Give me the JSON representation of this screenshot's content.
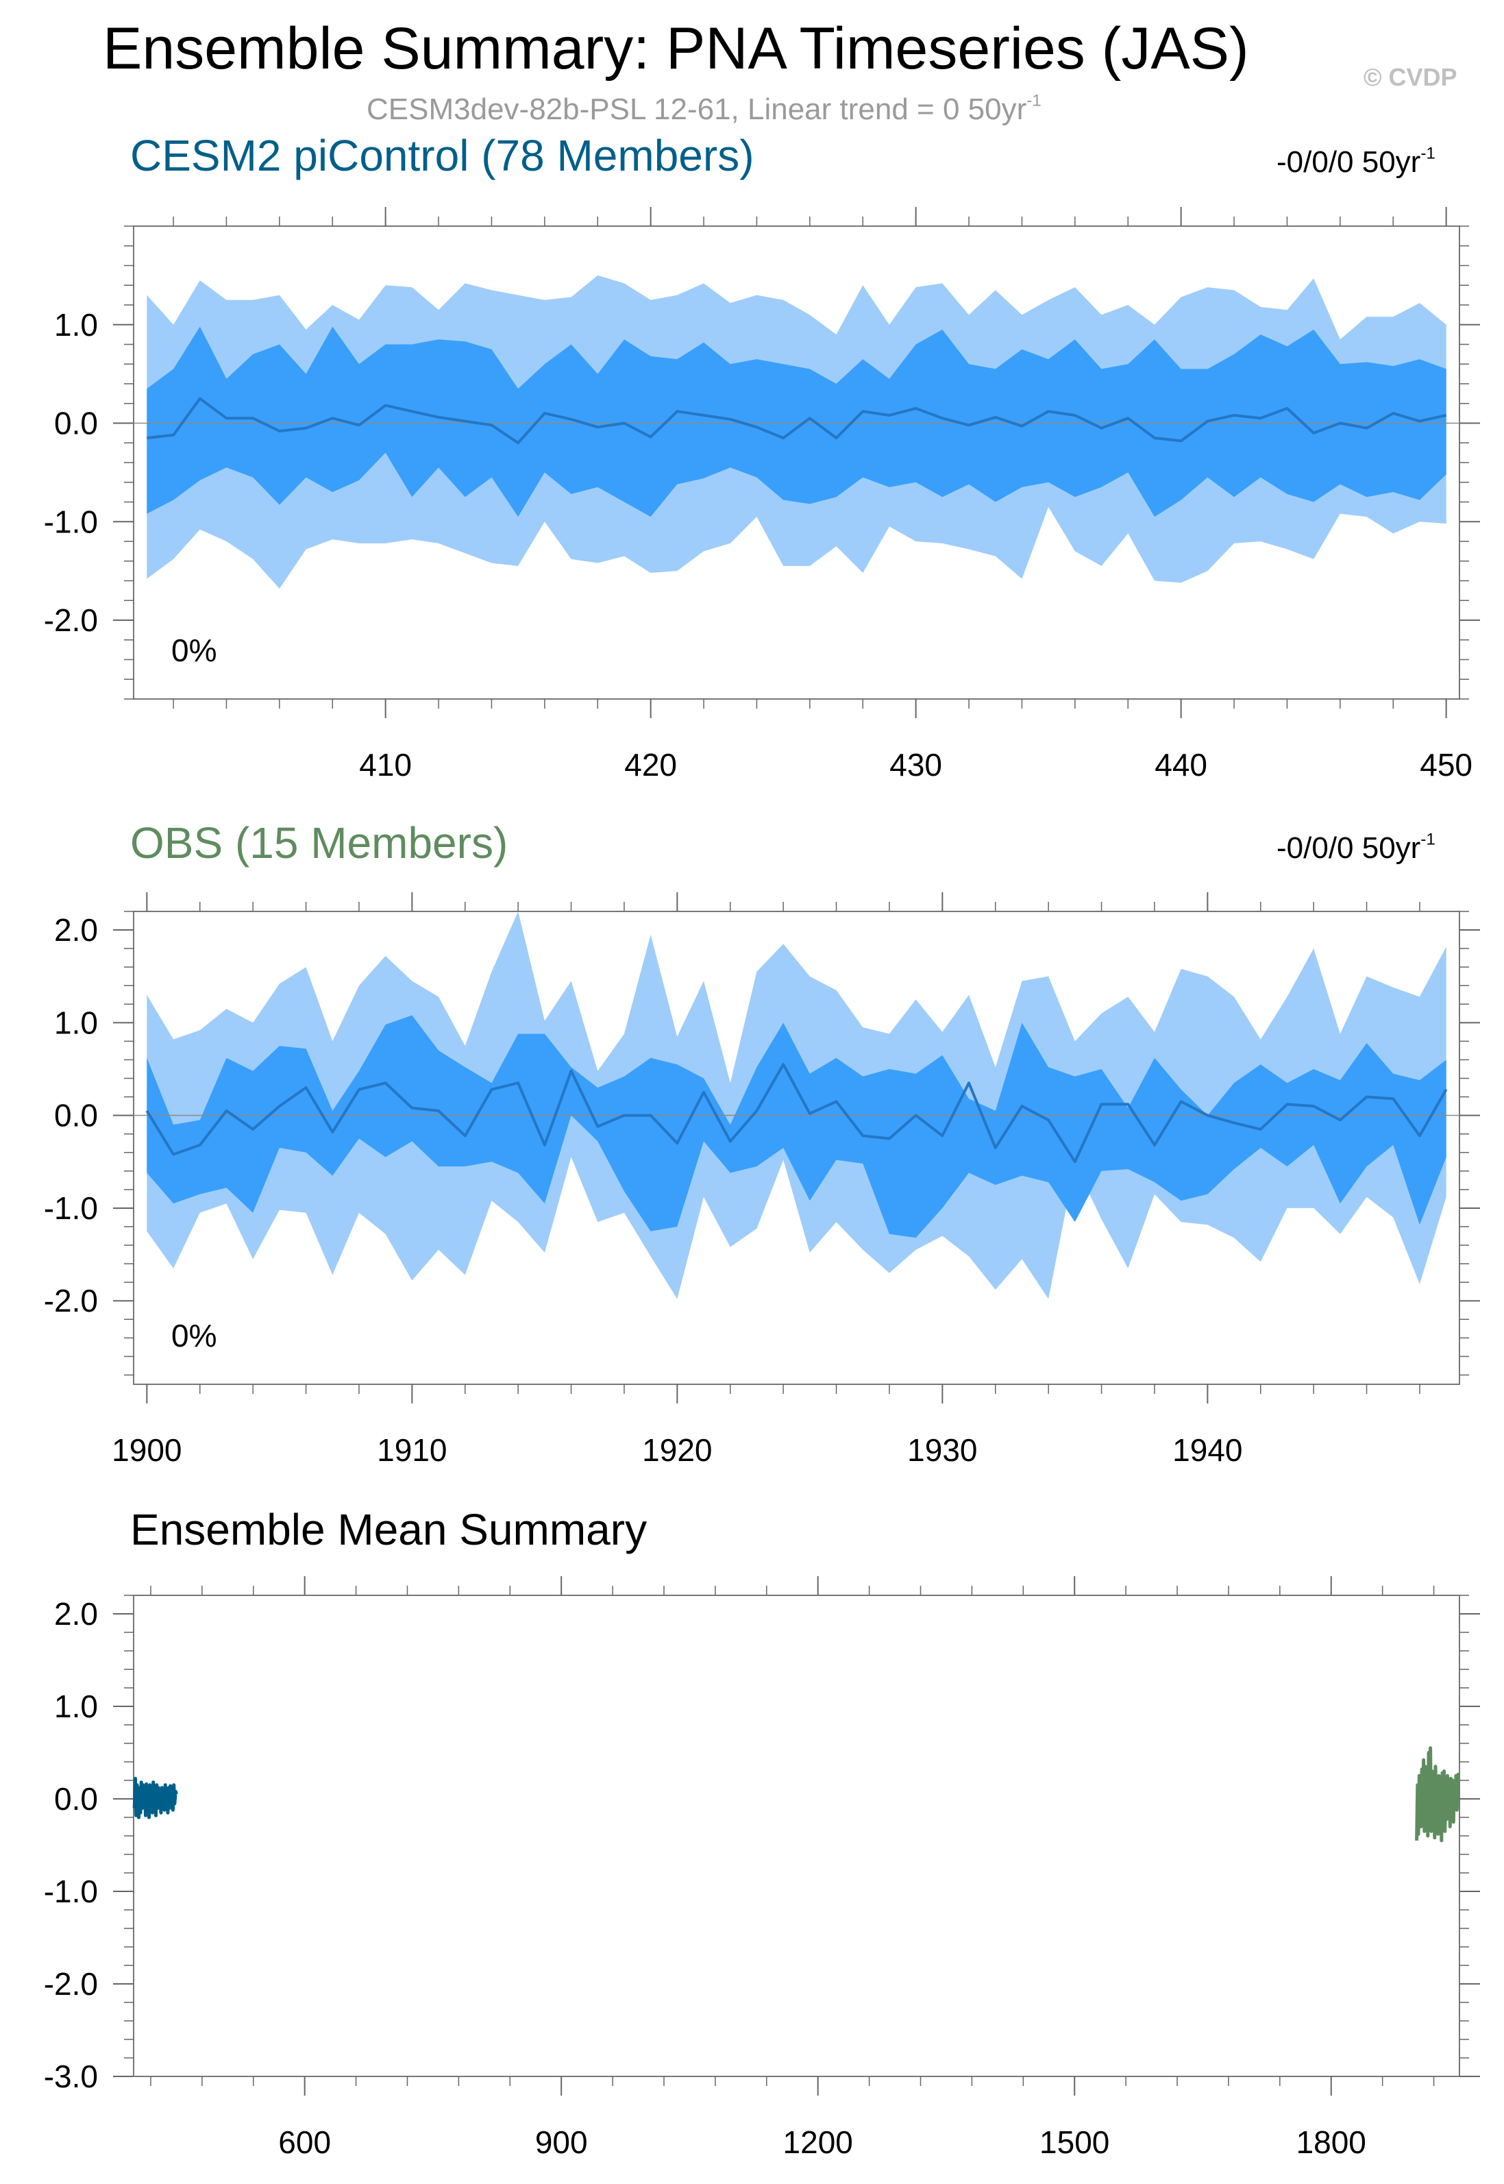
{
  "title": "Ensemble Summary: PNA Timeseries (JAS)",
  "copyright": "© CVDP",
  "subtitle": {
    "text": "CESM3dev-82b-PSL 12-61, Linear trend = 0 50yr",
    "sup": "-1"
  },
  "colors": {
    "outer_band": "#9fcdfb",
    "inner_band": "#3a9ffb",
    "mean_line": "#2477c6",
    "zero_line": "#8a8a8a",
    "model_title": "#005f8a",
    "obs_title": "#5f8c5f",
    "model_mean": "#005f8a",
    "obs_mean": "#5f8c5f"
  },
  "panel1": {
    "title": "CESM2 piControl (78 Members)",
    "trend": "-0/0/0 50yr",
    "trend_sup": "-1",
    "percent_label": "0%"
  },
  "panel2": {
    "title": "OBS (15 Members)",
    "trend": "-0/0/0 50yr",
    "trend_sup": "-1",
    "percent_label": "0%"
  },
  "panel3": {
    "title": "Ensemble Mean Summary"
  },
  "chart_data": [
    {
      "type": "area",
      "name": "CESM2 piControl (78 Members)",
      "x_start": 401,
      "xlim": [
        400.5,
        450.5
      ],
      "ylim": [
        -2.8,
        2.0
      ],
      "xticks": [
        410,
        420,
        430,
        440,
        450
      ],
      "yticks": [
        1.0,
        0.0,
        -1.0,
        -2.0
      ],
      "ytick_labels": [
        "1.0",
        "0.0",
        "-1.0",
        "-2.0"
      ],
      "series": [
        {
          "name": "max",
          "values": [
            1.3,
            1.0,
            1.45,
            1.25,
            1.25,
            1.3,
            0.95,
            1.2,
            1.05,
            1.4,
            1.38,
            1.15,
            1.42,
            1.35,
            1.3,
            1.25,
            1.28,
            1.5,
            1.42,
            1.25,
            1.3,
            1.42,
            1.22,
            1.3,
            1.25,
            1.1,
            0.9,
            1.4,
            1.0,
            1.38,
            1.42,
            1.1,
            1.35,
            1.1,
            1.25,
            1.38,
            1.1,
            1.2,
            1.0,
            1.28,
            1.38,
            1.35,
            1.18,
            1.15,
            1.47,
            0.85,
            1.08,
            1.08,
            1.22,
            1.0
          ]
        },
        {
          "name": "p84",
          "values": [
            0.35,
            0.55,
            0.98,
            0.45,
            0.7,
            0.8,
            0.5,
            0.98,
            0.6,
            0.8,
            0.8,
            0.85,
            0.83,
            0.75,
            0.35,
            0.6,
            0.8,
            0.5,
            0.85,
            0.68,
            0.65,
            0.82,
            0.6,
            0.65,
            0.6,
            0.55,
            0.4,
            0.65,
            0.45,
            0.8,
            0.95,
            0.6,
            0.55,
            0.75,
            0.65,
            0.85,
            0.55,
            0.6,
            0.85,
            0.55,
            0.55,
            0.7,
            0.9,
            0.78,
            0.95,
            0.6,
            0.62,
            0.58,
            0.65,
            0.55
          ]
        },
        {
          "name": "mean",
          "values": [
            -0.15,
            -0.12,
            0.25,
            0.05,
            0.05,
            -0.08,
            -0.05,
            0.05,
            -0.02,
            0.18,
            0.12,
            0.06,
            0.02,
            -0.02,
            -0.2,
            0.1,
            0.04,
            -0.04,
            0.0,
            -0.14,
            0.12,
            0.08,
            0.04,
            -0.04,
            -0.15,
            0.05,
            -0.15,
            0.12,
            0.08,
            0.15,
            0.05,
            -0.02,
            0.06,
            -0.03,
            0.12,
            0.08,
            -0.05,
            0.05,
            -0.15,
            -0.18,
            0.02,
            0.08,
            0.05,
            0.15,
            -0.1,
            0.0,
            -0.05,
            0.1,
            0.02,
            0.08
          ]
        },
        {
          "name": "p16",
          "values": [
            -0.92,
            -0.78,
            -0.58,
            -0.45,
            -0.55,
            -0.83,
            -0.55,
            -0.7,
            -0.58,
            -0.3,
            -0.75,
            -0.45,
            -0.75,
            -0.55,
            -0.95,
            -0.5,
            -0.72,
            -0.65,
            -0.8,
            -0.95,
            -0.62,
            -0.56,
            -0.45,
            -0.55,
            -0.78,
            -0.82,
            -0.75,
            -0.55,
            -0.65,
            -0.6,
            -0.75,
            -0.62,
            -0.8,
            -0.65,
            -0.6,
            -0.75,
            -0.65,
            -0.5,
            -0.95,
            -0.78,
            -0.55,
            -0.75,
            -0.55,
            -0.72,
            -0.8,
            -0.62,
            -0.75,
            -0.7,
            -0.78,
            -0.52
          ]
        },
        {
          "name": "min",
          "values": [
            -1.58,
            -1.38,
            -1.08,
            -1.2,
            -1.38,
            -1.68,
            -1.28,
            -1.18,
            -1.22,
            -1.22,
            -1.18,
            -1.22,
            -1.32,
            -1.42,
            -1.45,
            -1.0,
            -1.38,
            -1.42,
            -1.35,
            -1.52,
            -1.5,
            -1.3,
            -1.22,
            -0.95,
            -1.45,
            -1.45,
            -1.25,
            -1.52,
            -1.05,
            -1.2,
            -1.22,
            -1.28,
            -1.35,
            -1.58,
            -0.85,
            -1.3,
            -1.45,
            -1.12,
            -1.6,
            -1.62,
            -1.5,
            -1.22,
            -1.2,
            -1.28,
            -1.38,
            -0.92,
            -0.95,
            -1.12,
            -1.0,
            -1.02
          ]
        }
      ]
    },
    {
      "type": "area",
      "name": "OBS (15 Members)",
      "x_start": 1900,
      "xlim": [
        1899.5,
        1949.5
      ],
      "ylim": [
        -2.9,
        2.2
      ],
      "xticks": [
        1900,
        1910,
        1920,
        1930,
        1940
      ],
      "yticks": [
        2.0,
        1.0,
        0.0,
        -1.0,
        -2.0
      ],
      "ytick_labels": [
        "2.0",
        "1.0",
        "0.0",
        "-1.0",
        "-2.0"
      ],
      "series": [
        {
          "name": "max",
          "values": [
            1.3,
            0.82,
            0.92,
            1.15,
            1.0,
            1.42,
            1.6,
            0.8,
            1.4,
            1.72,
            1.45,
            1.28,
            0.75,
            1.55,
            2.2,
            1.02,
            1.45,
            0.48,
            0.88,
            1.95,
            0.85,
            1.45,
            0.35,
            1.55,
            1.85,
            1.5,
            1.35,
            0.95,
            0.88,
            1.25,
            0.9,
            1.3,
            0.52,
            1.45,
            1.5,
            0.8,
            1.1,
            1.28,
            0.9,
            1.58,
            1.5,
            1.28,
            0.82,
            1.28,
            1.8,
            0.88,
            1.5,
            1.38,
            1.28,
            1.82
          ]
        },
        {
          "name": "p84",
          "values": [
            0.62,
            -0.1,
            -0.05,
            0.62,
            0.48,
            0.75,
            0.72,
            0.05,
            0.48,
            0.98,
            1.08,
            0.7,
            0.52,
            0.35,
            0.88,
            0.88,
            0.52,
            0.3,
            0.42,
            0.62,
            0.55,
            0.4,
            -0.1,
            0.52,
            1.0,
            0.45,
            0.62,
            0.42,
            0.5,
            0.45,
            0.65,
            0.18,
            0.05,
            1.0,
            0.52,
            0.42,
            0.5,
            0.08,
            0.62,
            0.28,
            0.0,
            0.35,
            0.55,
            0.35,
            0.5,
            0.38,
            0.78,
            0.45,
            0.38,
            0.6
          ]
        },
        {
          "name": "mean",
          "values": [
            0.05,
            -0.42,
            -0.32,
            0.05,
            -0.15,
            0.1,
            0.3,
            -0.18,
            0.28,
            0.35,
            0.08,
            0.05,
            -0.22,
            0.28,
            0.35,
            -0.32,
            0.48,
            -0.12,
            0.0,
            0.0,
            -0.3,
            0.25,
            -0.28,
            0.05,
            0.55,
            0.02,
            0.15,
            -0.22,
            -0.25,
            0.0,
            -0.22,
            0.35,
            -0.35,
            0.1,
            -0.05,
            -0.5,
            0.12,
            0.12,
            -0.32,
            0.15,
            0.0,
            -0.08,
            -0.15,
            0.12,
            0.1,
            -0.05,
            0.2,
            0.18,
            -0.22,
            0.28
          ]
        },
        {
          "name": "p16",
          "values": [
            -0.62,
            -0.95,
            -0.85,
            -0.78,
            -1.05,
            -0.35,
            -0.4,
            -0.65,
            -0.25,
            -0.45,
            -0.28,
            -0.55,
            -0.55,
            -0.5,
            -0.62,
            -0.95,
            0.0,
            -0.28,
            -0.82,
            -1.25,
            -1.2,
            -0.28,
            -0.62,
            -0.55,
            -0.35,
            -0.92,
            -0.48,
            -0.52,
            -1.28,
            -1.32,
            -1.0,
            -0.62,
            -0.75,
            -0.65,
            -0.72,
            -1.15,
            -0.6,
            -0.58,
            -0.72,
            -0.92,
            -0.85,
            -0.58,
            -0.35,
            -0.55,
            -0.32,
            -0.95,
            -0.55,
            -0.32,
            -1.18,
            -0.45
          ]
        },
        {
          "name": "min",
          "values": [
            -1.25,
            -1.65,
            -1.05,
            -0.95,
            -1.55,
            -1.02,
            -1.05,
            -1.72,
            -1.05,
            -1.28,
            -1.78,
            -1.45,
            -1.72,
            -0.92,
            -1.15,
            -1.48,
            -0.45,
            -1.15,
            -1.05,
            -1.52,
            -1.98,
            -0.88,
            -1.42,
            -1.22,
            -0.48,
            -1.48,
            -1.15,
            -1.45,
            -1.7,
            -1.45,
            -1.3,
            -1.52,
            -1.88,
            -1.55,
            -1.98,
            -0.52,
            -1.12,
            -1.65,
            -0.85,
            -1.15,
            -1.18,
            -1.32,
            -1.58,
            -1.0,
            -1.0,
            -1.28,
            -0.88,
            -1.1,
            -1.82,
            -0.88
          ]
        }
      ]
    },
    {
      "type": "line",
      "name": "Ensemble Mean Summary",
      "xlim": [
        400,
        1950
      ],
      "ylim": [
        -3.0,
        2.2
      ],
      "xticks": [
        600,
        900,
        1200,
        1500,
        1800
      ],
      "yticks": [
        2.0,
        1.0,
        0.0,
        -1.0,
        -2.0,
        -3.0
      ],
      "ytick_labels": [
        "2.0",
        "1.0",
        "0.0",
        "-1.0",
        "-2.0",
        "-3.0"
      ],
      "series": [
        {
          "name": "CESM2 piControl ensemble mean",
          "x_start": 401,
          "color_key": "model_mean",
          "values": [
            -0.1,
            0.22,
            -0.18,
            0.15,
            0.05,
            -0.2,
            0.12,
            -0.15,
            0.18,
            -0.1,
            0.15,
            -0.08,
            0.1,
            -0.18,
            0.16,
            -0.12,
            0.12,
            -0.2,
            0.15,
            -0.05,
            0.1,
            -0.15,
            0.18,
            -0.08,
            0.05,
            -0.18,
            0.15,
            -0.1,
            0.12,
            -0.05,
            0.08,
            -0.15,
            0.12,
            -0.02,
            0.1,
            -0.12,
            0.15,
            -0.05,
            0.08,
            -0.15,
            0.12,
            -0.1,
            0.14,
            -0.08,
            0.1,
            -0.12,
            0.15,
            -0.05,
            0.08,
            0.05
          ]
        },
        {
          "name": "OBS ensemble mean",
          "x_start": 1900,
          "color_key": "obs_mean",
          "values": [
            -0.45,
            0.15,
            -0.38,
            0.25,
            0.05,
            -0.3,
            0.32,
            -0.22,
            0.42,
            -0.35,
            0.35,
            -0.1,
            0.22,
            -0.4,
            0.5,
            -0.12,
            0.55,
            -0.35,
            0.3,
            -0.25,
            0.15,
            -0.42,
            0.35,
            -0.2,
            0.1,
            -0.38,
            0.25,
            -0.18,
            0.2,
            -0.45,
            0.28,
            -0.05,
            0.3,
            -0.35,
            0.12,
            -0.22,
            0.25,
            -0.1,
            0.18,
            -0.3,
            0.22,
            0.0,
            0.2,
            -0.25,
            0.18,
            -0.05,
            0.25,
            -0.12,
            0.22,
            0.28
          ]
        }
      ]
    }
  ]
}
